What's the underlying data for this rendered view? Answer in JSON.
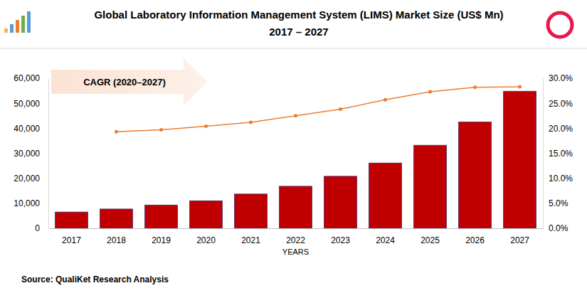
{
  "chart_data": {
    "type": "bar",
    "title": "Global Laboratory Information Management System (LIMS) Market Size (US$ Mn)",
    "subtitle": "2017 – 2027",
    "x_label": "YEARS",
    "annotation": "CAGR (2020–2027)",
    "caption": "Source: QualiKet Research Analysis",
    "categories": [
      "2017",
      "2018",
      "2019",
      "2020",
      "2021",
      "2022",
      "2023",
      "2024",
      "2025",
      "2026",
      "2027"
    ],
    "series": [
      {
        "type": "bar",
        "color": "#c00000",
        "values": [
          6500,
          7700,
          9300,
          11000,
          13700,
          16800,
          20800,
          26100,
          33200,
          42500,
          54800
        ]
      },
      {
        "type": "line",
        "color": "#ed7d31",
        "marker": "circle",
        "line_style": "solid",
        "axis": "y2",
        "values": [
          null,
          19.3,
          19.7,
          20.4,
          21.2,
          22.5,
          23.8,
          25.7,
          27.3,
          28.2,
          28.3
        ]
      }
    ],
    "ylim": [
      0,
      60000
    ],
    "yticks": [
      0,
      {
        "value": 10000,
        "label": "10,000"
      },
      {
        "value": 20000,
        "label": "20,000"
      },
      {
        "value": 30000,
        "label": "30,000"
      },
      {
        "value": 40000,
        "label": "40,000"
      },
      {
        "value": 50000,
        "label": "50,000"
      },
      {
        "value": 60000,
        "label": "60,000"
      }
    ],
    "y2lim": [
      0,
      30
    ],
    "y2ticks": [
      {
        "value": 0,
        "label": "0.0%"
      },
      {
        "value": 5,
        "label": "5.0%"
      },
      {
        "value": 10,
        "label": "10.0%"
      },
      {
        "value": 15,
        "label": "15.0%"
      },
      {
        "value": 20,
        "label": "20.0%"
      },
      {
        "value": 25,
        "label": "25.0%"
      },
      {
        "value": 30,
        "label": "30.0%"
      }
    ],
    "grid": false
  }
}
